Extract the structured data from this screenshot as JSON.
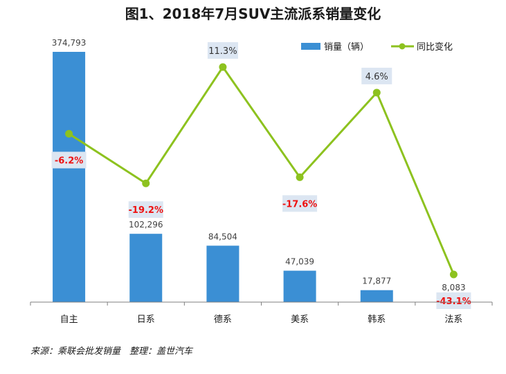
{
  "chart_data": {
    "type": "bar",
    "title": "图1、2018年7月SUV主流派系销量变化",
    "categories": [
      "自主",
      "日系",
      "德系",
      "美系",
      "韩系",
      "法系"
    ],
    "series": [
      {
        "name": "销量（辆）",
        "type": "bar",
        "values": [
          374793,
          102296,
          84504,
          47039,
          17877,
          8083
        ],
        "labels": [
          "374,793",
          "102,296",
          "84,504",
          "47,039",
          "17,877",
          "8,083"
        ]
      },
      {
        "name": "同比变化",
        "type": "line",
        "values": [
          -6.2,
          -19.2,
          11.3,
          -17.6,
          4.6,
          -43.1
        ],
        "labels": [
          "-6.2%",
          "-19.2%",
          "11.3%",
          "-17.6%",
          "4.6%",
          "-43.1%"
        ]
      }
    ],
    "legend_position": "top-right",
    "grid": false,
    "colors": {
      "bar": "#3b8fd4",
      "line": "#8dc21f",
      "negative_label": "#ee1111",
      "positive_label": "#333333",
      "label_box": "#dce6f2"
    }
  },
  "source": "来源：乘联会批发销量　整理：盖世汽车"
}
